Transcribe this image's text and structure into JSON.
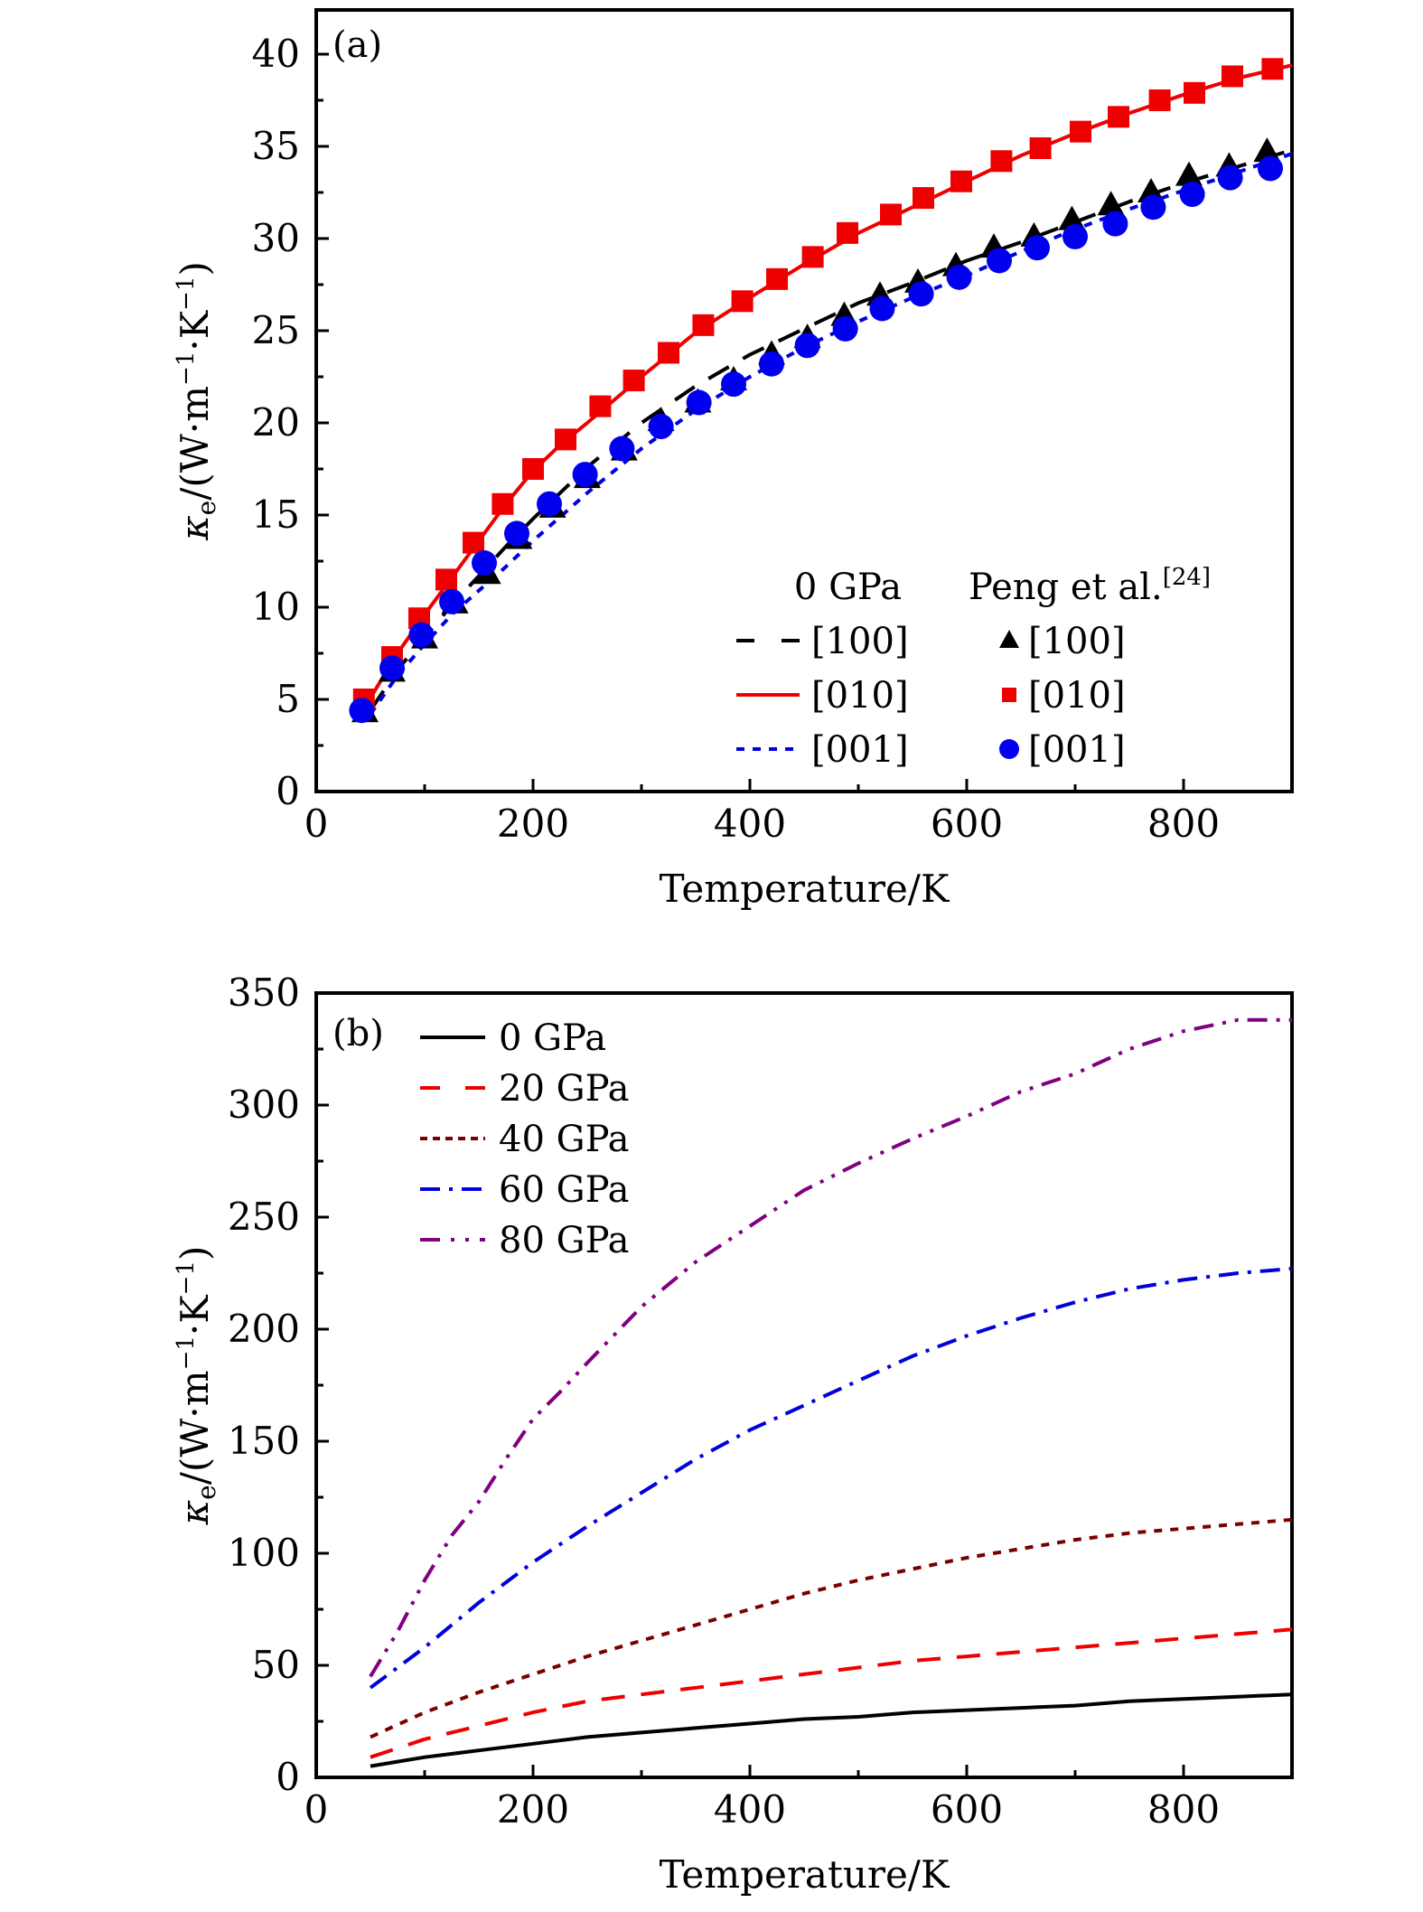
{
  "chart_data": [
    {
      "type": "line",
      "panel_label": "(a)",
      "xlabel": "Temperature/K",
      "ylabel": {
        "symbol": "κ",
        "subscript": "e",
        "unit": "/(W·m",
        "sup1": "−1",
        "mid": "·K",
        "sup2": "−1",
        "close": ")"
      },
      "xlim": [
        0,
        900
      ],
      "ylim": [
        0,
        42.4
      ],
      "xticks": [
        0,
        200,
        400,
        600,
        800
      ],
      "yticks": [
        0,
        5,
        10,
        15,
        20,
        25,
        30,
        35,
        40
      ],
      "grid": false,
      "legend": {
        "placement": "bottom-right",
        "col1_title": "0 GPa",
        "col2_title": "Peng et al.",
        "col2_title_ref": "[24]",
        "entries_lines": [
          "[100]",
          "[010]",
          "[001]"
        ],
        "entries_markers": [
          "[100]",
          "[010]",
          "[001]"
        ]
      },
      "series": [
        {
          "name": "[100] 0 GPa",
          "kind": "line",
          "style": "dashed",
          "color": "#000000",
          "x": [
            50,
            75,
            100,
            125,
            150,
            175,
            200,
            250,
            300,
            350,
            400,
            450,
            500,
            550,
            600,
            650,
            700,
            750,
            800,
            850,
            900
          ],
          "y": [
            4.4,
            6.6,
            8.4,
            10.1,
            11.7,
            13.3,
            14.8,
            17.6,
            20.0,
            22.0,
            23.7,
            25.1,
            26.5,
            27.6,
            28.8,
            29.8,
            30.9,
            32.0,
            33.0,
            33.9,
            34.8
          ]
        },
        {
          "name": "[010] 0 GPa",
          "kind": "line",
          "style": "solid",
          "color": "#ee0000",
          "x": [
            45,
            75,
            100,
            125,
            150,
            175,
            200,
            225,
            250,
            300,
            350,
            400,
            450,
            500,
            550,
            600,
            650,
            700,
            750,
            800,
            850,
            900
          ],
          "y": [
            4.6,
            7.5,
            9.6,
            11.6,
            13.6,
            15.6,
            17.4,
            18.8,
            20.0,
            22.5,
            24.9,
            26.8,
            28.6,
            30.3,
            31.7,
            33.1,
            34.5,
            35.7,
            36.8,
            37.8,
            38.7,
            39.4
          ]
        },
        {
          "name": "[001] 0 GPa",
          "kind": "line",
          "style": "dotted",
          "color": "#0000dd",
          "x": [
            50,
            75,
            100,
            125,
            150,
            175,
            200,
            250,
            300,
            350,
            400,
            450,
            500,
            550,
            600,
            650,
            700,
            750,
            800,
            850,
            900
          ],
          "y": [
            4.2,
            6.3,
            8.0,
            9.6,
            10.9,
            12.2,
            13.6,
            16.2,
            18.6,
            20.7,
            22.5,
            24.1,
            25.5,
            26.8,
            28.0,
            29.3,
            30.5,
            31.6,
            32.6,
            33.6,
            34.6
          ]
        },
        {
          "name": "[100] Peng et al.",
          "kind": "scatter",
          "marker": "triangle",
          "color": "#000000",
          "x": [
            45,
            70,
            100,
            128,
            158,
            187,
            218,
            250,
            284,
            318,
            352,
            385,
            420,
            453,
            487,
            520,
            555,
            590,
            625,
            662,
            697,
            733,
            770,
            805,
            842,
            877
          ],
          "y": [
            4.3,
            6.5,
            8.3,
            10.2,
            11.8,
            13.7,
            15.4,
            17.0,
            18.5,
            20.1,
            21.1,
            22.3,
            23.7,
            24.6,
            25.8,
            26.9,
            27.6,
            28.5,
            29.5,
            30.1,
            31.0,
            31.8,
            32.5,
            33.4,
            33.9,
            34.7
          ]
        },
        {
          "name": "[010] Peng et al.",
          "kind": "scatter",
          "marker": "square",
          "color": "#ee0000",
          "x": [
            44,
            70,
            95,
            120,
            145,
            172,
            200,
            230,
            262,
            293,
            325,
            357,
            393,
            425,
            458,
            490,
            530,
            560,
            595,
            632,
            668,
            705,
            740,
            778,
            810,
            845,
            882
          ],
          "y": [
            5.0,
            7.3,
            9.4,
            11.5,
            13.5,
            15.6,
            17.5,
            19.1,
            20.9,
            22.3,
            23.8,
            25.3,
            26.6,
            27.8,
            29.0,
            30.3,
            31.3,
            32.2,
            33.1,
            34.2,
            34.9,
            35.8,
            36.6,
            37.5,
            37.9,
            38.8,
            39.2
          ]
        },
        {
          "name": "[001] Peng et al.",
          "kind": "scatter",
          "marker": "circle",
          "color": "#0000ee",
          "x": [
            42,
            70,
            97,
            125,
            155,
            185,
            215,
            248,
            282,
            318,
            353,
            385,
            420,
            453,
            488,
            522,
            558,
            593,
            630,
            665,
            700,
            737,
            772,
            808,
            843,
            880
          ],
          "y": [
            4.4,
            6.7,
            8.5,
            10.3,
            12.4,
            14.0,
            15.6,
            17.2,
            18.6,
            19.8,
            21.1,
            22.1,
            23.2,
            24.2,
            25.1,
            26.2,
            27.0,
            27.9,
            28.8,
            29.5,
            30.1,
            30.8,
            31.7,
            32.4,
            33.3,
            33.8
          ]
        }
      ]
    },
    {
      "type": "line",
      "panel_label": "(b)",
      "xlabel": "Temperature/K",
      "ylabel": {
        "symbol": "κ",
        "subscript": "e",
        "unit": "/(W·m",
        "sup1": "−1",
        "mid": "·K",
        "sup2": "−1",
        "close": ")"
      },
      "xlim": [
        0,
        900
      ],
      "ylim": [
        0,
        350
      ],
      "xticks": [
        0,
        200,
        400,
        600,
        800
      ],
      "yticks": [
        0,
        50,
        100,
        150,
        200,
        250,
        300,
        350
      ],
      "grid": false,
      "legend": {
        "placement": "top-left"
      },
      "series": [
        {
          "name": "0 GPa",
          "style": "solid",
          "color": "#000000",
          "x": [
            50,
            75,
            100,
            150,
            200,
            250,
            300,
            350,
            400,
            450,
            500,
            550,
            600,
            650,
            700,
            750,
            800,
            850,
            900
          ],
          "y": [
            5,
            7,
            9,
            12,
            15,
            18,
            20,
            22,
            24,
            26,
            27,
            29,
            30,
            31,
            32,
            34,
            35,
            36,
            37
          ]
        },
        {
          "name": "20 GPa",
          "style": "dashed",
          "color": "#ee0000",
          "x": [
            50,
            100,
            150,
            200,
            250,
            300,
            350,
            400,
            450,
            500,
            550,
            600,
            650,
            700,
            750,
            800,
            850,
            900
          ],
          "y": [
            9,
            17,
            23,
            29,
            34,
            37,
            40,
            43,
            46,
            49,
            52,
            54,
            56,
            58,
            60,
            62,
            64,
            66
          ]
        },
        {
          "name": "40 GPa",
          "style": "dotted",
          "color": "#7a0000",
          "x": [
            50,
            100,
            150,
            200,
            250,
            300,
            350,
            400,
            450,
            500,
            550,
            600,
            650,
            700,
            750,
            800,
            850,
            900
          ],
          "y": [
            18,
            29,
            38,
            46,
            54,
            61,
            68,
            75,
            82,
            88,
            93,
            98,
            102,
            106,
            109,
            111,
            113,
            115
          ]
        },
        {
          "name": "60 GPa",
          "style": "dashdot",
          "color": "#0000dd",
          "x": [
            50,
            100,
            150,
            200,
            250,
            300,
            350,
            400,
            450,
            500,
            550,
            600,
            650,
            700,
            750,
            800,
            850,
            900
          ],
          "y": [
            40,
            58,
            78,
            96,
            112,
            127,
            142,
            155,
            166,
            177,
            188,
            197,
            205,
            212,
            218,
            222,
            225,
            227
          ]
        },
        {
          "name": "80 GPa",
          "style": "dashdotdot",
          "color": "#800080",
          "x": [
            50,
            75,
            100,
            125,
            150,
            175,
            200,
            225,
            250,
            300,
            350,
            400,
            450,
            500,
            550,
            600,
            650,
            700,
            750,
            800,
            850,
            900
          ],
          "y": [
            45,
            65,
            88,
            108,
            123,
            142,
            160,
            172,
            185,
            210,
            230,
            246,
            262,
            274,
            285,
            295,
            306,
            314,
            325,
            333,
            338,
            338
          ]
        }
      ]
    }
  ]
}
